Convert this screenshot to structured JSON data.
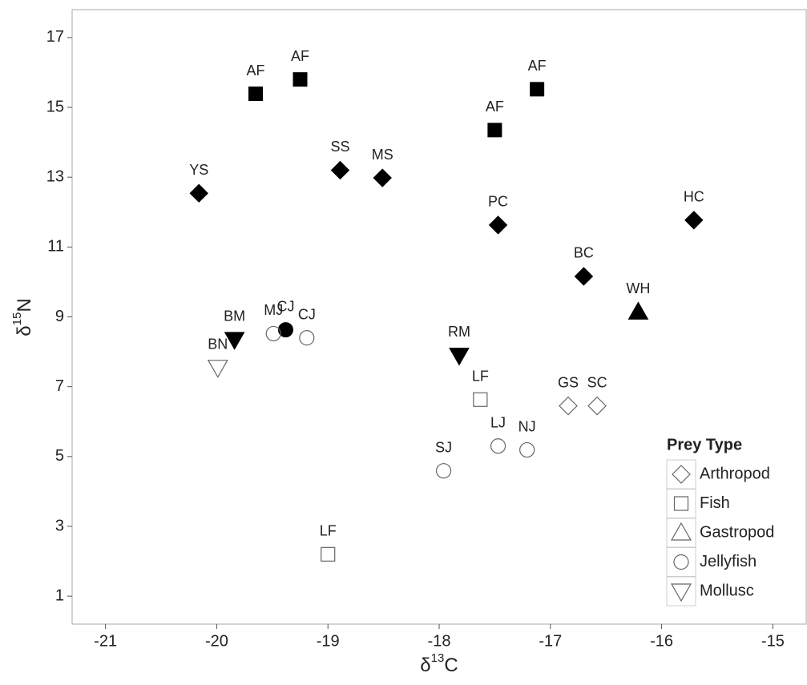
{
  "chart_data": {
    "type": "scatter",
    "x_label": {
      "symbol": "δ",
      "superscript": "13",
      "letter": "C"
    },
    "y_label": {
      "symbol": "δ",
      "superscript": "15",
      "letter": "N"
    },
    "xlim": [
      -21.3,
      -14.7
    ],
    "ylim": [
      0.2,
      17.8
    ],
    "xticks": [
      -21,
      -20,
      -19,
      -18,
      -17,
      -16,
      -15
    ],
    "yticks": [
      1,
      3,
      5,
      7,
      9,
      11,
      13,
      15,
      17
    ],
    "legend_title": "Prey Type",
    "legend_position": "bottom-right",
    "series": [
      {
        "name": "Arthropod",
        "marker": "diamond",
        "color": "#000000",
        "x": [
          -20.16,
          -18.89,
          -18.51,
          -17.47,
          -16.7,
          -15.71,
          -16.84,
          -16.58
        ],
        "y": [
          12.54,
          13.2,
          12.98,
          11.63,
          10.16,
          11.77,
          6.45,
          6.45
        ],
        "labels": [
          "YS",
          "SS",
          "MS",
          "PC",
          "BC",
          "HC",
          "GS",
          "SC"
        ],
        "filled": [
          true,
          true,
          true,
          true,
          true,
          true,
          false,
          false
        ]
      },
      {
        "name": "Fish",
        "marker": "square",
        "color": "#000000",
        "x": [
          -19.65,
          -19.25,
          -17.5,
          -17.12,
          -17.63,
          -19.0
        ],
        "y": [
          15.39,
          15.8,
          14.35,
          15.52,
          6.63,
          2.2
        ],
        "labels": [
          "AF",
          "AF",
          "AF",
          "AF",
          "LF",
          "LF"
        ],
        "filled": [
          true,
          true,
          true,
          true,
          false,
          false
        ]
      },
      {
        "name": "Gastropod",
        "marker": "triangle",
        "color": "#000000",
        "x": [
          -16.21
        ],
        "y": [
          9.14
        ],
        "labels": [
          "WH"
        ],
        "filled": [
          true
        ]
      },
      {
        "name": "Jellyfish",
        "marker": "circle",
        "color": "#000000",
        "x": [
          -19.38,
          -19.49,
          -19.19,
          -17.96,
          -17.47,
          -17.21
        ],
        "y": [
          8.63,
          8.52,
          8.4,
          4.59,
          5.3,
          5.19
        ],
        "labels": [
          "CJ",
          "MJ",
          "CJ",
          "SJ",
          "LJ",
          "NJ"
        ],
        "filled": [
          true,
          false,
          false,
          false,
          false,
          false
        ]
      },
      {
        "name": "Mollusc",
        "marker": "triangle-down",
        "color": "#000000",
        "x": [
          -19.84,
          -17.82,
          -19.99
        ],
        "y": [
          8.35,
          7.9,
          7.55
        ],
        "labels": [
          "BM",
          "RM",
          "BN"
        ],
        "filled": [
          true,
          true,
          false
        ]
      }
    ]
  }
}
